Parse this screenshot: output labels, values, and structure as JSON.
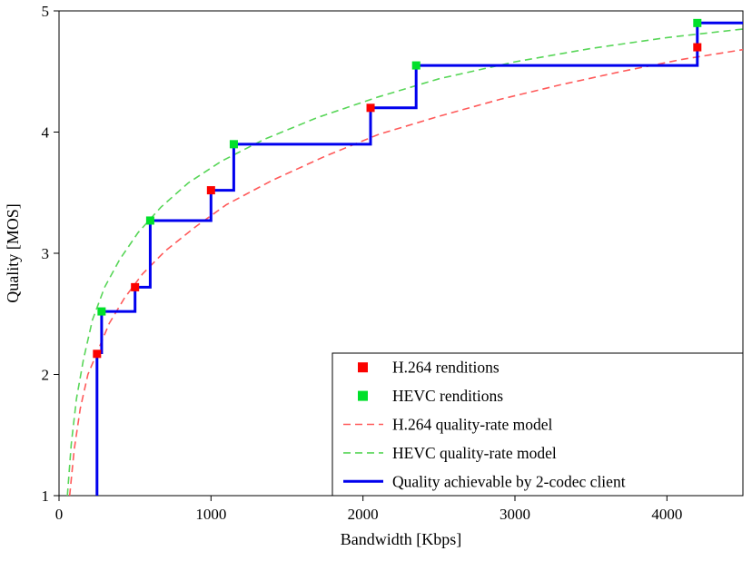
{
  "chart_data": {
    "type": "line",
    "title": "",
    "xlabel": "Bandwidth [Kbps]",
    "ylabel": "Quality [MOS]",
    "xlim": [
      0,
      4500
    ],
    "ylim": [
      1,
      5
    ],
    "x_ticks": [
      0,
      1000,
      2000,
      3000,
      4000
    ],
    "y_ticks": [
      1,
      2,
      3,
      4,
      5
    ],
    "grid": false,
    "legend_position": "lower right",
    "series": [
      {
        "id": "h264-renditions",
        "name": "H.264 renditions",
        "kind": "scatter",
        "marker": "square",
        "color": "#fb0200",
        "points": [
          [
            250,
            2.17
          ],
          [
            500,
            2.72
          ],
          [
            1000,
            3.52
          ],
          [
            2050,
            4.2
          ],
          [
            4200,
            4.7
          ]
        ]
      },
      {
        "id": "hevc-renditions",
        "name": "HEVC renditions",
        "kind": "scatter",
        "marker": "square",
        "color": "#00e02a",
        "points": [
          [
            280,
            2.52
          ],
          [
            600,
            3.27
          ],
          [
            1150,
            3.9
          ],
          [
            2350,
            4.55
          ],
          [
            4200,
            4.9
          ]
        ]
      },
      {
        "id": "h264-model",
        "name": "H.264 quality-rate model",
        "kind": "line",
        "style": "dashed",
        "color": "#ff5a5a",
        "width": 1.6,
        "points": [
          [
            70,
            1.0
          ],
          [
            100,
            1.38
          ],
          [
            140,
            1.72
          ],
          [
            190,
            2.0
          ],
          [
            250,
            2.18
          ],
          [
            330,
            2.42
          ],
          [
            430,
            2.63
          ],
          [
            550,
            2.83
          ],
          [
            700,
            3.02
          ],
          [
            900,
            3.22
          ],
          [
            1100,
            3.4
          ],
          [
            1400,
            3.6
          ],
          [
            1750,
            3.8
          ],
          [
            2100,
            3.98
          ],
          [
            2500,
            4.13
          ],
          [
            2900,
            4.27
          ],
          [
            3300,
            4.39
          ],
          [
            3700,
            4.5
          ],
          [
            4100,
            4.6
          ],
          [
            4500,
            4.68
          ]
        ]
      },
      {
        "id": "hevc-model",
        "name": "HEVC quality-rate model",
        "kind": "line",
        "style": "dashed",
        "color": "#58d658",
        "width": 1.6,
        "points": [
          [
            55,
            1.0
          ],
          [
            80,
            1.42
          ],
          [
            115,
            1.8
          ],
          [
            160,
            2.12
          ],
          [
            220,
            2.45
          ],
          [
            300,
            2.72
          ],
          [
            400,
            2.95
          ],
          [
            520,
            3.17
          ],
          [
            670,
            3.38
          ],
          [
            850,
            3.58
          ],
          [
            1070,
            3.76
          ],
          [
            1350,
            3.94
          ],
          [
            1700,
            4.12
          ],
          [
            2100,
            4.29
          ],
          [
            2500,
            4.44
          ],
          [
            3000,
            4.58
          ],
          [
            3500,
            4.69
          ],
          [
            4000,
            4.78
          ],
          [
            4500,
            4.85
          ]
        ]
      },
      {
        "id": "two-codec-client",
        "name": "Quality achievable by 2-codec client",
        "kind": "line",
        "style": "solid",
        "color": "#0000ee",
        "width": 3,
        "points": [
          [
            250,
            1.0
          ],
          [
            250,
            2.18
          ],
          [
            280,
            2.18
          ],
          [
            280,
            2.52
          ],
          [
            500,
            2.52
          ],
          [
            500,
            2.72
          ],
          [
            600,
            2.72
          ],
          [
            600,
            3.27
          ],
          [
            1000,
            3.27
          ],
          [
            1000,
            3.52
          ],
          [
            1150,
            3.52
          ],
          [
            1150,
            3.9
          ],
          [
            2050,
            3.9
          ],
          [
            2050,
            4.2
          ],
          [
            2350,
            4.2
          ],
          [
            2350,
            4.55
          ],
          [
            4200,
            4.55
          ],
          [
            4200,
            4.9
          ],
          [
            4500,
            4.9
          ]
        ]
      }
    ]
  }
}
